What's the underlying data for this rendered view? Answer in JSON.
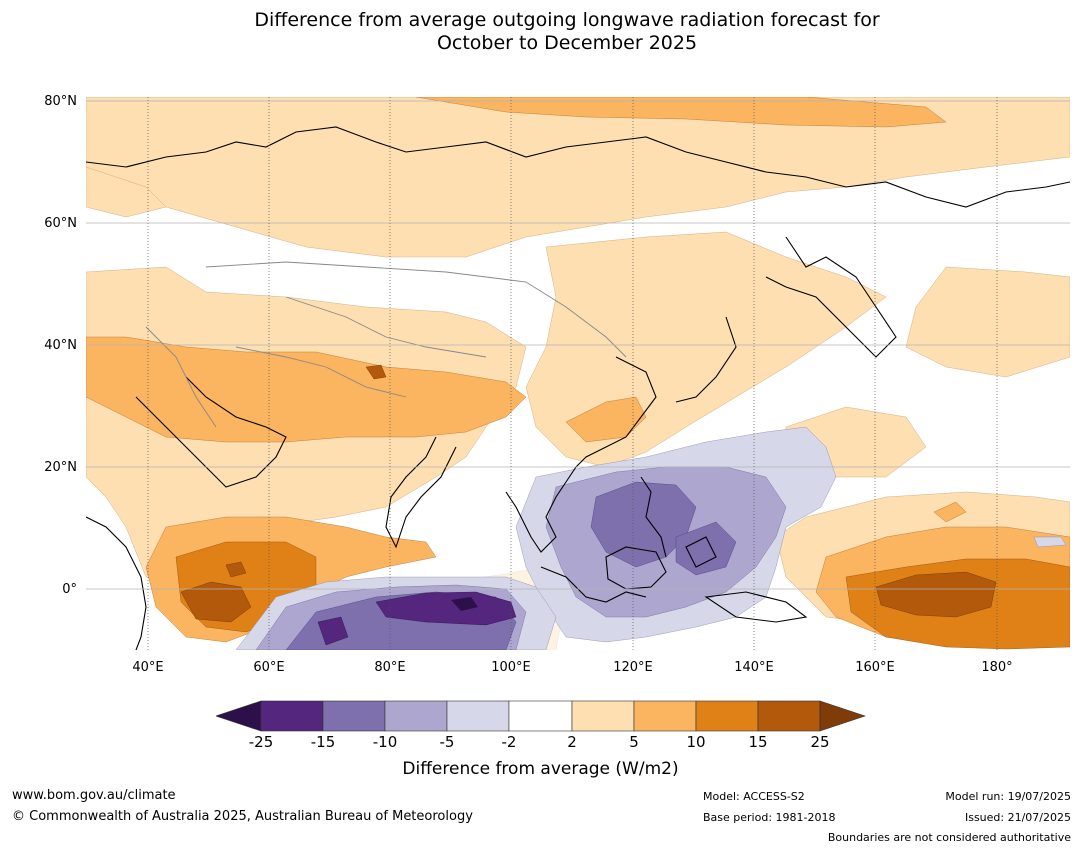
{
  "title_line1": "Difference from average outgoing longwave radiation forecast for",
  "title_line2": "October to December 2025",
  "lat_labels": [
    "80°N",
    "60°N",
    "40°N",
    "20°N",
    "0°"
  ],
  "lon_labels": [
    "40°E",
    "60°E",
    "80°E",
    "100°E",
    "120°E",
    "140°E",
    "160°E",
    "180°"
  ],
  "colorbar": {
    "ticks": [
      "-25",
      "-15",
      "-10",
      "-5",
      "-2",
      "2",
      "5",
      "10",
      "15",
      "25"
    ],
    "label": "Difference from average (W/m2)",
    "colors": {
      "below_-25": "#2d0f4a",
      "-25_to_-15": "#54267d",
      "-15_to_-10": "#7e6fad",
      "-10_to_-5": "#ada6cf",
      "-5_to_-2": "#d7d7ea",
      "-2_to_2": "#ffffff",
      "2_to_5": "#fddfb2",
      "5_to_10": "#fbb45f",
      "10_to_15": "#e08118",
      "15_to_25": "#b3590b",
      "above_25": "#7f3b08"
    }
  },
  "footer": {
    "website": "www.bom.gov.au/climate",
    "copyright": "© Commonwealth of Australia 2025, Australian Bureau of Meteorology",
    "model": "Model: ACCESS-S2",
    "base_period": "Base period: 1981-2018",
    "model_run": "Model run: 19/07/2025",
    "issued": "Issued: 21/07/2025",
    "disclaimer": "Boundaries are not considered authoritative"
  }
}
